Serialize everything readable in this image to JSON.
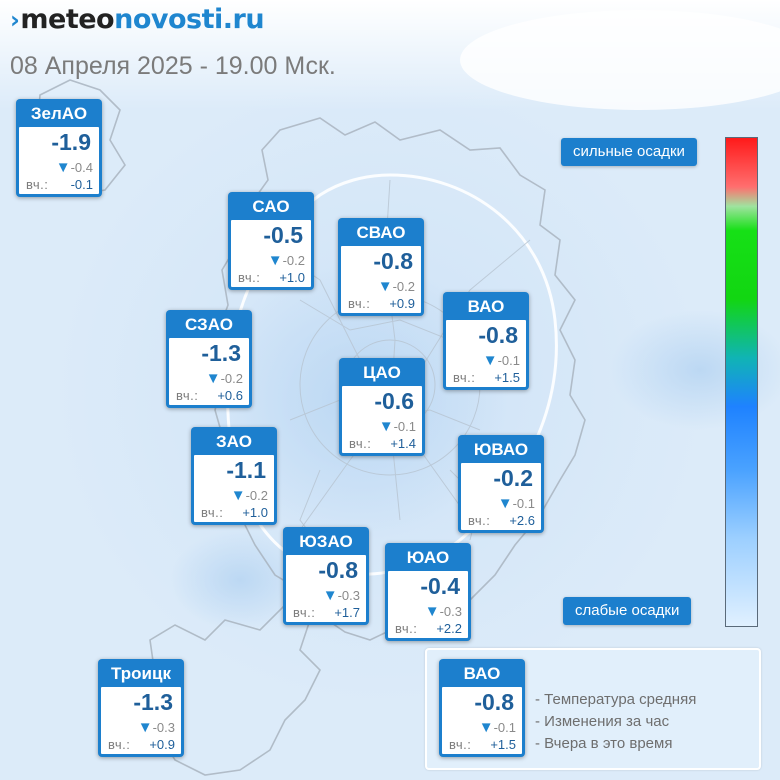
{
  "header": {
    "logo_mark": "›",
    "logo_part_a": "meteo",
    "logo_part_b": "novosti.ru",
    "subtitle": "08 Апреля 2025 - 19.00 Мск."
  },
  "districts": [
    {
      "name": "ЗелАО",
      "temp": "-1.9",
      "change": "-0.4",
      "yesterday_label": "вч.:",
      "yesterday": "-0.1"
    },
    {
      "name": "САО",
      "temp": "-0.5",
      "change": "-0.2",
      "yesterday_label": "вч.:",
      "yesterday": "+1.0"
    },
    {
      "name": "СВАО",
      "temp": "-0.8",
      "change": "-0.2",
      "yesterday_label": "вч.:",
      "yesterday": "+0.9"
    },
    {
      "name": "ВАО",
      "temp": "-0.8",
      "change": "-0.1",
      "yesterday_label": "вч.:",
      "yesterday": "+1.5"
    },
    {
      "name": "СЗАО",
      "temp": "-1.3",
      "change": "-0.2",
      "yesterday_label": "вч.:",
      "yesterday": "+0.6"
    },
    {
      "name": "ЦАО",
      "temp": "-0.6",
      "change": "-0.1",
      "yesterday_label": "вч.:",
      "yesterday": "+1.4"
    },
    {
      "name": "ЗАО",
      "temp": "-1.1",
      "change": "-0.2",
      "yesterday_label": "вч.:",
      "yesterday": "+1.0"
    },
    {
      "name": "ЮВАО",
      "temp": "-0.2",
      "change": "-0.1",
      "yesterday_label": "вч.:",
      "yesterday": "+2.6"
    },
    {
      "name": "ЮЗАО",
      "temp": "-0.8",
      "change": "-0.3",
      "yesterday_label": "вч.:",
      "yesterday": "+1.7"
    },
    {
      "name": "ЮАО",
      "temp": "-0.4",
      "change": "-0.3",
      "yesterday_label": "вч.:",
      "yesterday": "+2.2"
    },
    {
      "name": "Троицк",
      "temp": "-1.3",
      "change": "-0.3",
      "yesterday_label": "вч.:",
      "yesterday": "+0.9"
    }
  ],
  "precip_scale": {
    "top_label": "сильные осадки",
    "bottom_label": "слабые осадки"
  },
  "legend": {
    "sample": {
      "name": "ВАО",
      "temp": "-0.8",
      "change": "-0.1",
      "yesterday_label": "вч.:",
      "yesterday": "+1.5"
    },
    "line1": "- Температура средняя",
    "line2": "- Изменения за час",
    "line3": "- Вчера в это время"
  },
  "colors": {
    "card_blue": "#1c7fcd",
    "value_text": "#1f5f9a",
    "change_triangle": "#1f86cf"
  },
  "icons": {
    "change_indicator": "down-triangle-icon"
  }
}
